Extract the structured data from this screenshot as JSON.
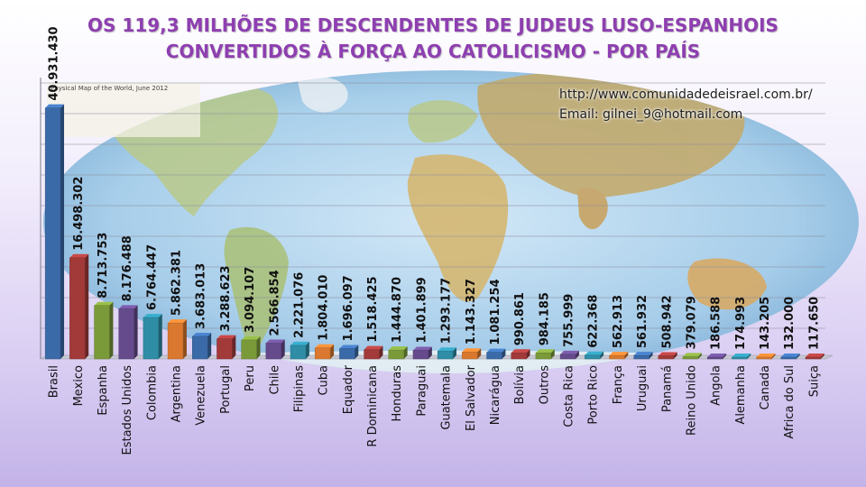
{
  "title": {
    "line1": "OS 119,3 MILHÕES DE DESCENDENTES DE JUDEUS LUSO-ESPANHOIS",
    "line2": "CONVERTIDOS À FORÇA AO CATOLICISMO  -  POR PAÍS"
  },
  "credits": {
    "url": "http://www.comunidadedeisrael.com.br/",
    "email": "Email: gilnei_9@hotmail.com"
  },
  "background_map_caption": "Physical Map of the World, June 2012",
  "colors": {
    "title": "#8e3fb0",
    "palette": [
      "#3b6aa8",
      "#a23a3a",
      "#7a9a3a",
      "#654a8c",
      "#2f8da6",
      "#d9782e"
    ]
  },
  "chart_data": {
    "type": "bar",
    "ylim": [
      0,
      45000000
    ],
    "grid": true,
    "categories": [
      "Brasil",
      "Mexico",
      "Espanha",
      "Estados Unidos",
      "Colombia",
      "Argentina",
      "Venezuela",
      "Portugal",
      "Peru",
      "Chile",
      "Filipinas",
      "Cuba",
      "Equador",
      "R Dominicana",
      "Honduras",
      "Paraguai",
      "Guatemala",
      "El Salvador",
      "Nicarágua",
      "Bolívia",
      "Outros",
      "Costa Rica",
      "Porto Rico",
      "França",
      "Uruguai",
      "Panamá",
      "Reino Unido",
      "Angola",
      "Alemanha",
      "Canada",
      "Africa do Sul",
      "Suiça"
    ],
    "values": [
      40931430,
      16498302,
      8713753,
      8176488,
      6764447,
      5862381,
      3683013,
      3288623,
      3094107,
      2566854,
      2221076,
      1804010,
      1696097,
      1518425,
      1444870,
      1401899,
      1293177,
      1143327,
      1081254,
      990861,
      984185,
      755999,
      622368,
      562913,
      561932,
      508942,
      379079,
      186588,
      174993,
      143205,
      132000,
      117650
    ],
    "labels": [
      "40.931.430",
      "16.498.302",
      "8.713.753",
      "8.176.488",
      "6.764.447",
      "5.862.381",
      "3.683.013",
      "3.288.623",
      "3.094.107",
      "2.566.854",
      "2.221.076",
      "1.804.010",
      "1.696.097",
      "1.518.425",
      "1.444.870",
      "1.401.899",
      "1.293.177",
      "1.143.327",
      "1.081.254",
      "990.861",
      "984.185",
      "755.999",
      "622.368",
      "562.913",
      "561.932",
      "508.942",
      "379.079",
      "186.588",
      "174.993",
      "143.205",
      "132.000",
      "117.650"
    ]
  }
}
